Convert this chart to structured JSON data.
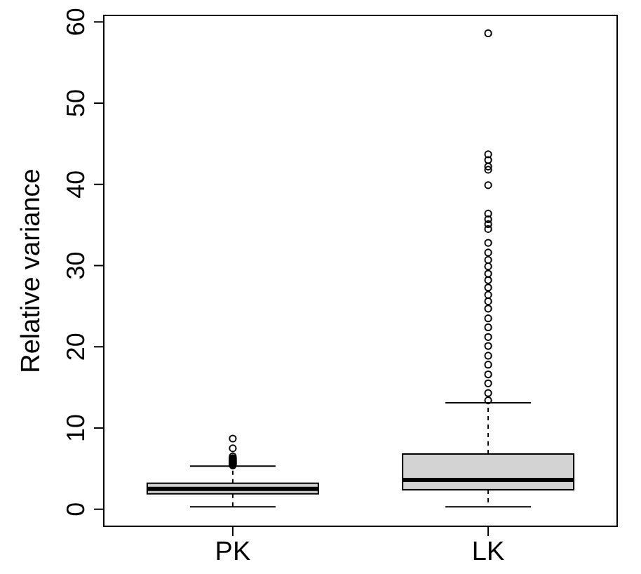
{
  "chart_data": {
    "type": "box",
    "ylabel": "Relative variance",
    "categories": [
      "PK",
      "LK"
    ],
    "color": "#d3d3d3",
    "boxes": [
      {
        "low": 0.3,
        "q1": 1.9,
        "median": 2.5,
        "q3": 3.2,
        "high": 5.3,
        "outliers": [
          5.4,
          5.5,
          5.6,
          5.7,
          5.8,
          5.9,
          6.0,
          6.1,
          6.2,
          6.3,
          6.5,
          7.5,
          8.7
        ]
      },
      {
        "low": 0.3,
        "q1": 2.4,
        "median": 3.6,
        "q3": 6.8,
        "high": 13.1,
        "outliers": [
          13.4,
          14.3,
          15.5,
          16.6,
          17.8,
          18.9,
          20.1,
          21.2,
          22.4,
          23.5,
          24.7,
          25.6,
          26.4,
          27.3,
          28.2,
          29.0,
          29.9,
          30.7,
          31.6,
          32.8,
          34.5,
          35.1,
          35.7,
          36.4,
          39.9,
          41.8,
          42.2,
          43.0,
          43.7,
          58.6
        ]
      }
    ],
    "ylim": [
      -2.1,
      60.8
    ],
    "yticks": [
      0,
      10,
      20,
      30,
      40,
      50,
      60
    ],
    "grid": false
  }
}
